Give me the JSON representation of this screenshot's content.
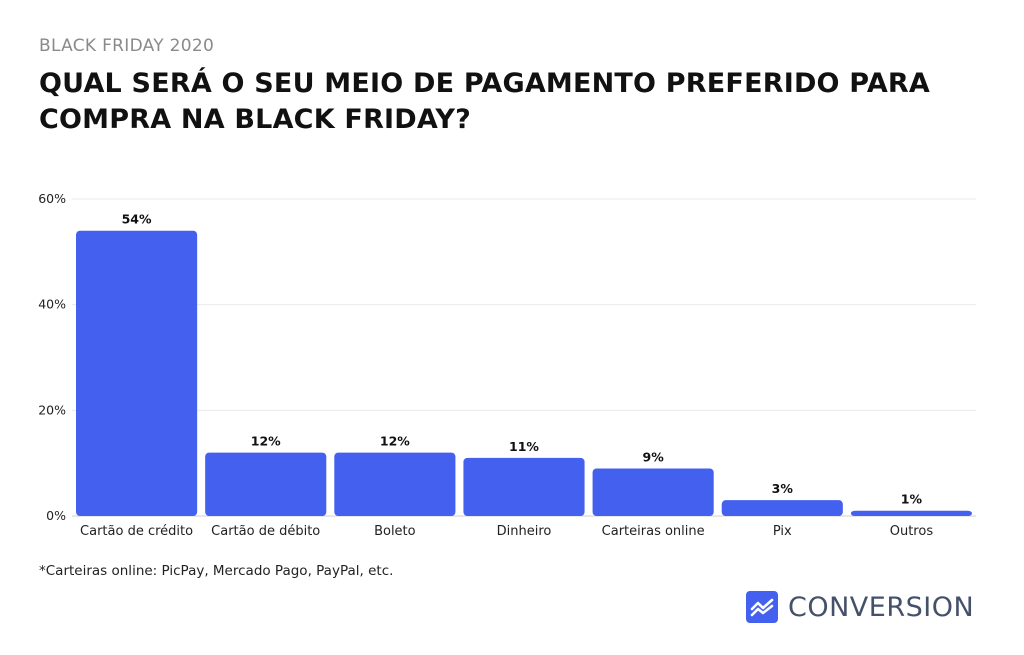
{
  "header": {
    "kicker": "BLACK FRIDAY 2020",
    "title": "QUAL SERÁ O SEU MEIO DE PAGAMENTO PREFERIDO PARA COMPRA NA BLACK FRIDAY?"
  },
  "chart_data": {
    "type": "bar",
    "categories": [
      "Cartão de crédito",
      "Cartão de débito",
      "Boleto",
      "Dinheiro",
      "Carteiras online",
      "Pix",
      "Outros"
    ],
    "values": [
      54,
      12,
      12,
      11,
      9,
      3,
      1
    ],
    "value_labels": [
      "54%",
      "12%",
      "12%",
      "11%",
      "9%",
      "3%",
      "1%"
    ],
    "ylim": [
      0,
      60
    ],
    "yticks": [
      0,
      20,
      40,
      60
    ],
    "ytick_labels": [
      "0%",
      "20%",
      "40%",
      "60%"
    ],
    "grid": true,
    "bar_color": "#4361ee"
  },
  "footnote": "*Carteiras online: PicPay, Mercado Pago, PayPal, etc.",
  "brand": {
    "name": "CONVERSION",
    "icon": "trend-chart-icon",
    "color": "#4361ee"
  }
}
